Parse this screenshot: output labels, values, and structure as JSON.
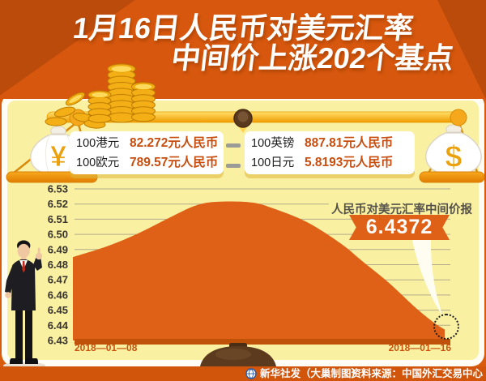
{
  "title": {
    "line1": "1月16日人民币对美元汇率",
    "line2": "中间价上涨202个基点"
  },
  "rates": {
    "left": [
      {
        "label": "100港元",
        "value": "82.272元人民币"
      },
      {
        "label": "100欧元",
        "value": "789.57元人民币"
      }
    ],
    "right": [
      {
        "label": "100英镑",
        "value": "887.81元人民币"
      },
      {
        "label": "100日元",
        "value": "5.8193元人民币"
      }
    ]
  },
  "scale": {
    "left_bag_symbol": "¥",
    "right_bag_symbol": "$"
  },
  "callout": {
    "label": "人民币对美元汇率中间价报",
    "value": "6.4372"
  },
  "chart_data": {
    "type": "area",
    "title": "人民币对美元汇率中间价",
    "x_labels": [
      "2018—01—08",
      "2018—01—16"
    ],
    "ylim": [
      6.43,
      6.53
    ],
    "yticks": [
      6.53,
      6.52,
      6.51,
      6.5,
      6.49,
      6.48,
      6.47,
      6.46,
      6.45,
      6.44,
      6.43
    ],
    "x": [
      0,
      0.09,
      0.17,
      0.26,
      0.33,
      0.39,
      0.48,
      0.54,
      0.63,
      0.72,
      0.78,
      0.85,
      0.92,
      0.97,
      1
    ],
    "values": [
      6.485,
      6.492,
      6.5,
      6.511,
      6.519,
      6.5215,
      6.521,
      6.517,
      6.508,
      6.494,
      6.482,
      6.468,
      6.452,
      6.442,
      6.4372
    ],
    "end_value": 6.4372,
    "grid": true,
    "legend": "none",
    "series_color": "#DF6017",
    "grid_color": "#B3AB8C",
    "tick_color": "#38342C",
    "date_color": "#C8520E"
  },
  "footer": {
    "credit": "新华社发（大巢制图）",
    "source": "资料来源：中国外汇交易中心"
  },
  "colors": {
    "header_orange": "#D6570D",
    "corner_dark_orange": "#BB4B0B",
    "panel_yellow": "#FAF0A2",
    "area_orange": "#DF6017",
    "value_red": "#C84E10",
    "footer_orange": "#D2550C",
    "gold": "#F4AF16"
  }
}
